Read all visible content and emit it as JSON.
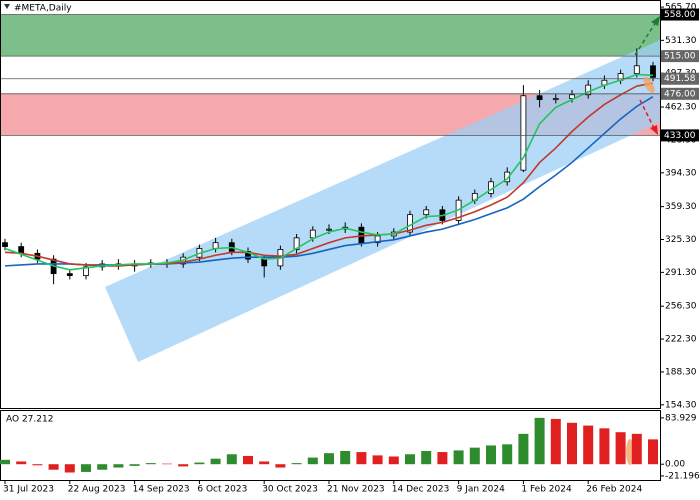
{
  "chart_data": [
    {
      "type": "candlestick",
      "title": "#META,Daily",
      "categories": [
        "31 Jul 2023",
        null,
        null,
        null,
        "22 Aug 2023",
        null,
        null,
        null,
        "14 Sep 2023",
        null,
        null,
        null,
        "6 Oct 2023",
        null,
        null,
        null,
        "30 Oct 2023",
        null,
        null,
        null,
        "21 Nov 2023",
        null,
        null,
        null,
        "14 Dec 2023",
        null,
        null,
        null,
        "9 Jan 2024",
        null,
        null,
        null,
        "1 Feb 2024",
        null,
        null,
        null,
        "26 Feb 2024",
        null,
        null,
        null,
        null
      ],
      "open": [
        322,
        318,
        311,
        305,
        290,
        288,
        297,
        300,
        298,
        300,
        301,
        300,
        307,
        316,
        322,
        313,
        305,
        298,
        315,
        327,
        335,
        336,
        338,
        322,
        329,
        333,
        351,
        356,
        345,
        366,
        373,
        385,
        397,
        474,
        470,
        471,
        475,
        485,
        490,
        497,
        505
      ],
      "high": [
        326,
        322,
        315,
        309,
        294,
        301,
        304,
        305,
        304,
        305,
        305,
        311,
        320,
        327,
        326,
        317,
        309,
        319,
        331,
        339,
        341,
        343,
        342,
        333,
        337,
        355,
        360,
        360,
        370,
        377,
        389,
        400,
        485,
        480,
        476,
        480,
        490,
        495,
        501,
        523,
        509
      ],
      "low": [
        314,
        307,
        301,
        279,
        284,
        284,
        293,
        294,
        292,
        296,
        296,
        296,
        303,
        312,
        309,
        301,
        286,
        294,
        311,
        323,
        331,
        332,
        318,
        318,
        325,
        329,
        347,
        341,
        341,
        362,
        369,
        381,
        395,
        462,
        466,
        467,
        471,
        481,
        486,
        493,
        489
      ],
      "close": [
        318,
        311,
        305,
        290,
        288,
        297,
        300,
        298,
        300,
        301,
        300,
        307,
        316,
        322,
        313,
        305,
        298,
        315,
        327,
        335,
        336,
        338,
        322,
        329,
        333,
        351,
        356,
        345,
        366,
        373,
        385,
        395,
        474,
        470,
        471,
        475,
        485,
        490,
        497,
        505,
        493
      ],
      "up_color": "#ffffff",
      "down_color": "#000000",
      "series": [
        {
          "color": "#1565c0",
          "values": [
            298,
            299,
            300,
            300,
            300,
            299,
            299,
            299,
            299,
            300,
            300,
            301,
            302,
            304,
            306,
            307,
            307,
            307,
            308,
            311,
            315,
            319,
            321,
            323,
            325,
            329,
            333,
            336,
            341,
            346,
            352,
            358,
            367,
            380,
            392,
            405,
            420,
            435,
            450,
            463,
            473
          ]
        },
        {
          "color": "#c0392b",
          "values": [
            312,
            311,
            308,
            304,
            300,
            299,
            298,
            298,
            299,
            300,
            300,
            302,
            305,
            309,
            312,
            312,
            309,
            308,
            310,
            316,
            322,
            327,
            329,
            330,
            331,
            335,
            340,
            343,
            348,
            354,
            361,
            369,
            384,
            405,
            420,
            437,
            452,
            465,
            475,
            484,
            487
          ]
        },
        {
          "color": "#22c55e",
          "values": [
            316,
            310,
            304,
            298,
            294,
            296,
            298,
            299,
            300,
            300,
            301,
            304,
            311,
            316,
            317,
            312,
            305,
            306,
            316,
            326,
            333,
            337,
            333,
            330,
            331,
            340,
            349,
            350,
            356,
            366,
            377,
            388,
            410,
            445,
            462,
            470,
            478,
            485,
            490,
            496,
            495
          ]
        }
      ],
      "zones": [
        {
          "ylim": [
            515,
            558
          ],
          "color": "#7dbf8a"
        },
        {
          "ylim": [
            433,
            476
          ],
          "color": "#f6a9ad"
        }
      ],
      "levels": [
        {
          "value": 558,
          "label": "558.00"
        },
        {
          "value": 515,
          "label": "515.00"
        },
        {
          "value": 491.58,
          "label": "491.58"
        },
        {
          "value": 476,
          "label": "476.00"
        },
        {
          "value": 433,
          "label": "433.00"
        }
      ],
      "ylim": [
        151,
        572
      ],
      "yticks": [
        {
          "value": 154.3,
          "label": "154.30"
        },
        {
          "value": 188.3,
          "label": "188.30"
        },
        {
          "value": 222.3,
          "label": "222.30"
        },
        {
          "value": 256.3,
          "label": "256.30"
        },
        {
          "value": 291.3,
          "label": "291.30"
        },
        {
          "value": 325.3,
          "label": "325.30"
        },
        {
          "value": 359.3,
          "label": "359.30"
        },
        {
          "value": 394.3,
          "label": "394.30"
        },
        {
          "value": 428.3,
          "label": "428.30"
        },
        {
          "value": 462.3,
          "label": "462.30"
        },
        {
          "value": 497.3,
          "label": "497.30"
        },
        {
          "value": 531.3,
          "label": "531.30"
        },
        {
          "value": 565.7,
          "label": "565.70"
        }
      ]
    },
    {
      "type": "bar",
      "title": "AO 27.212",
      "values": [
        8,
        5,
        -2,
        -10,
        -15,
        -14,
        -10,
        -6,
        -3,
        2,
        1,
        -4,
        3,
        10,
        18,
        15,
        5,
        -6,
        2,
        12,
        20,
        24,
        22,
        16,
        14,
        18,
        24,
        22,
        25,
        30,
        34,
        36,
        55,
        84,
        82,
        75,
        70,
        65,
        58,
        55,
        45
      ],
      "up_color": "#2e8b2e",
      "down_color": "#e02020",
      "ylim": [
        -28.6,
        96.4
      ],
      "yticks": [
        83.929,
        {
          "value": 0,
          "label": "0.00"
        },
        -21.196
      ]
    }
  ]
}
